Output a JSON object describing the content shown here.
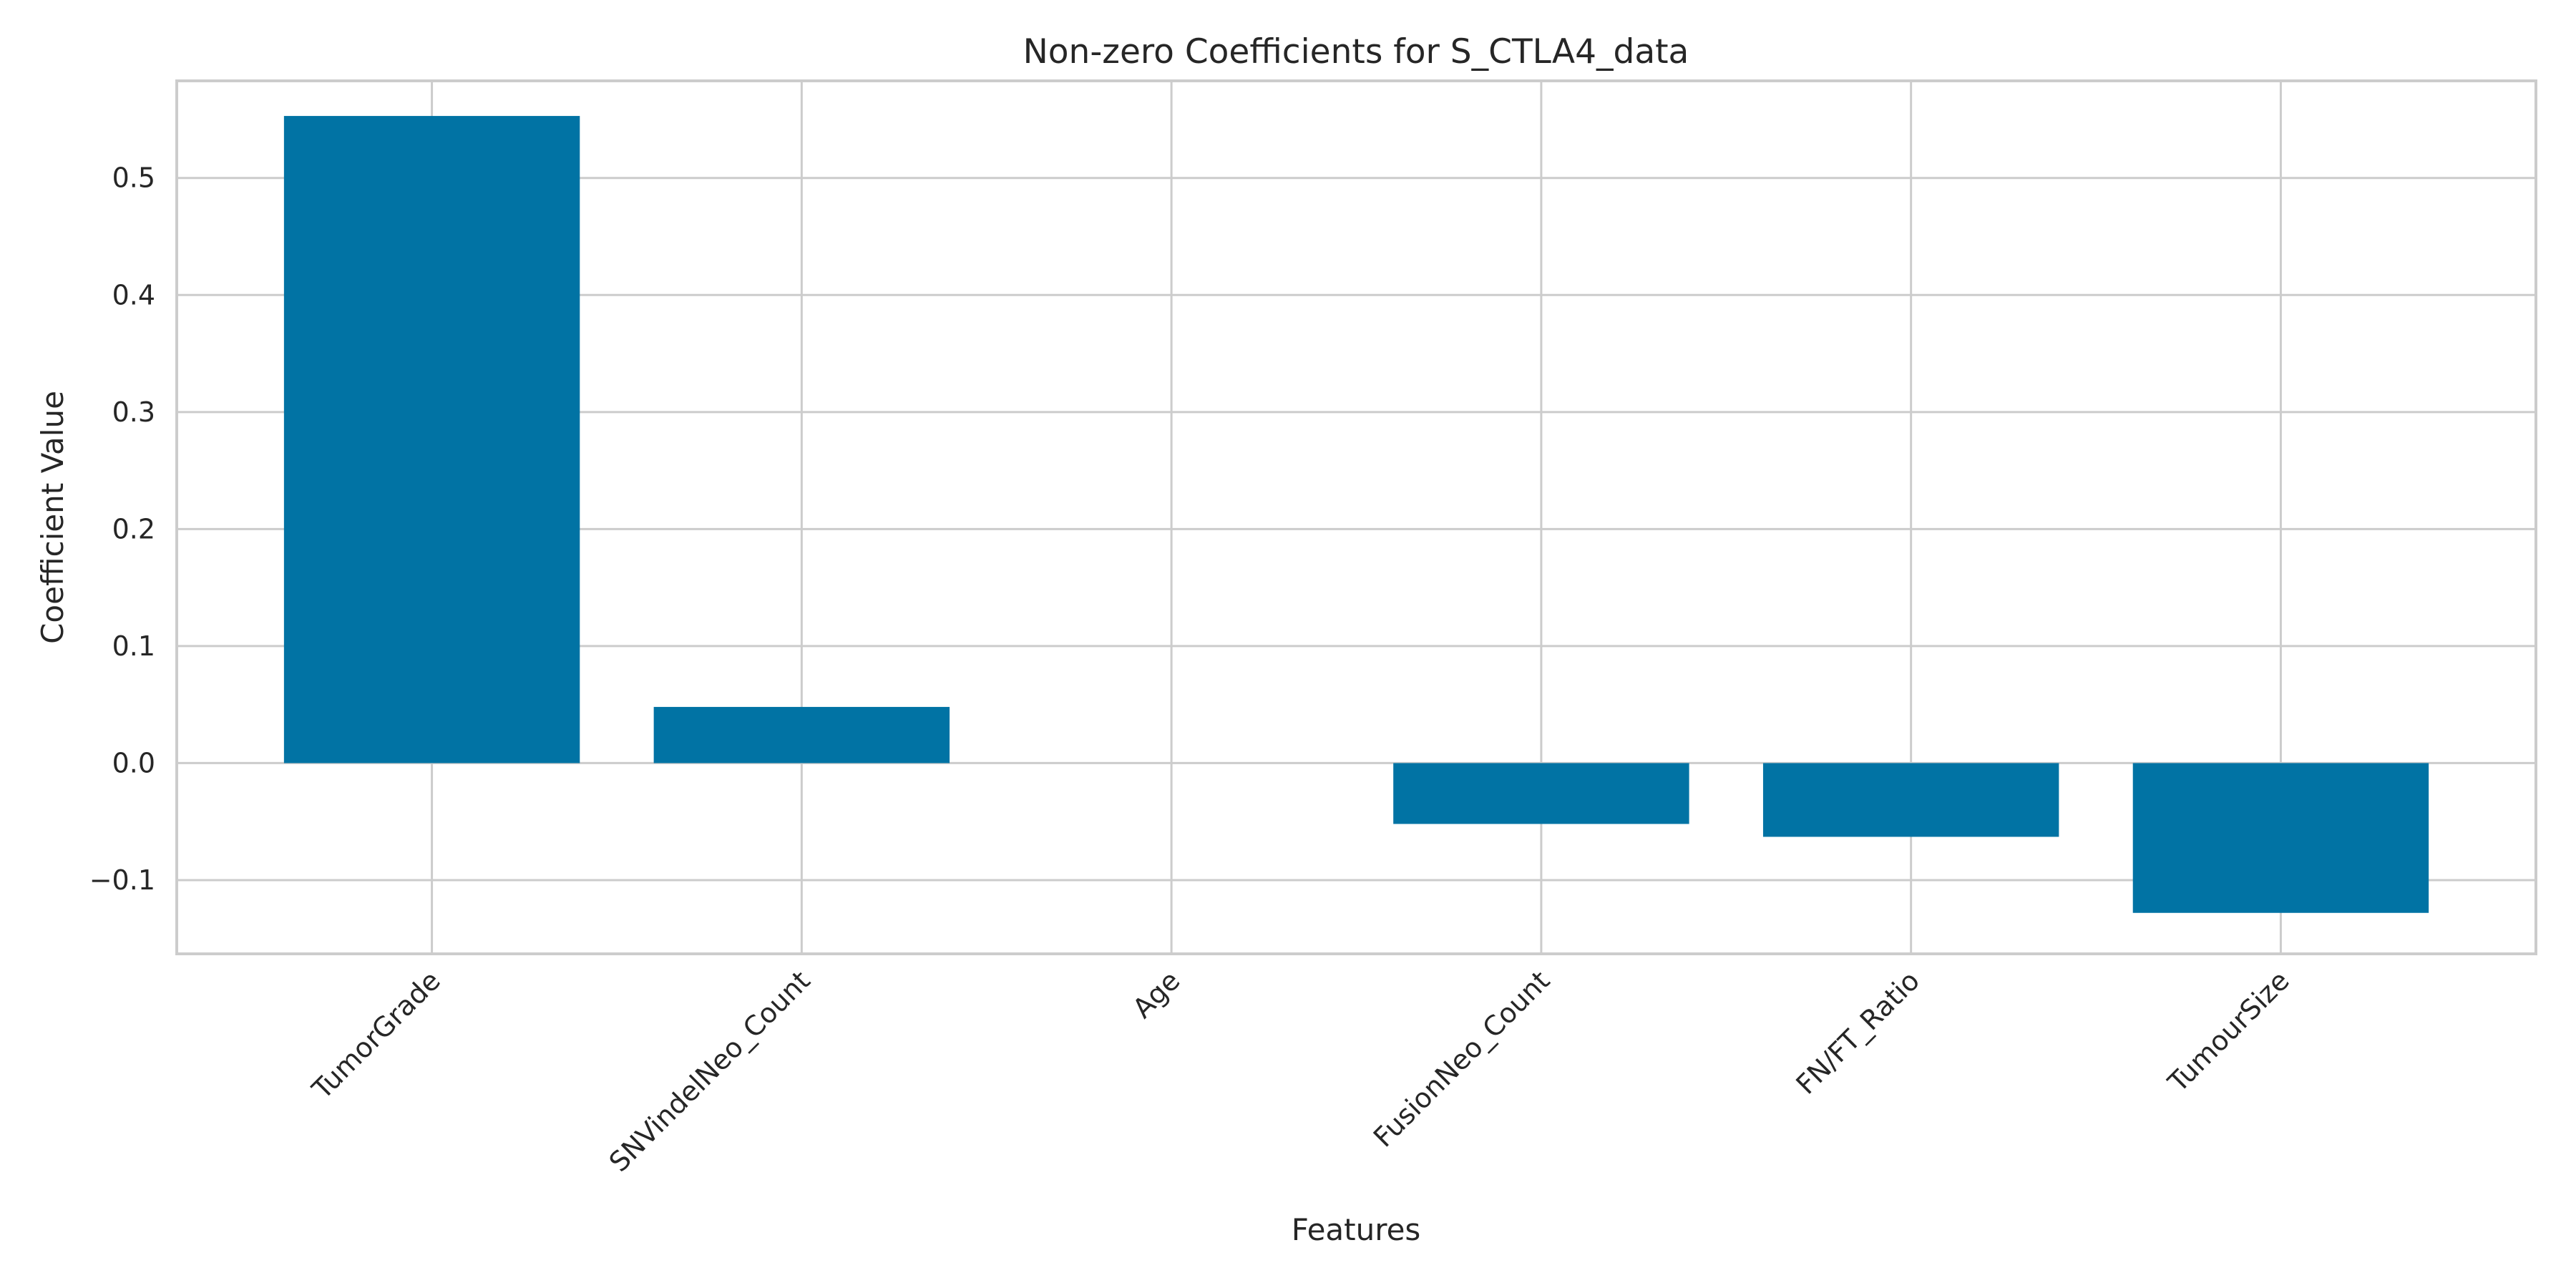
{
  "chart_data": {
    "type": "bar",
    "title": "Non-zero Coefficients for S_CTLA4_data",
    "xlabel": "Features",
    "ylabel": "Coefficient Value",
    "categories": [
      "TumorGrade",
      "SNVindelNeo_Count",
      "Age",
      "FusionNeo_Count",
      "FN/FT_Ratio",
      "TumourSize"
    ],
    "values": [
      0.553,
      0.048,
      0.0,
      -0.052,
      -0.063,
      -0.128
    ],
    "ylim": [
      -0.163,
      0.583
    ],
    "yticks": [
      -0.1,
      0.0,
      0.1,
      0.2,
      0.3,
      0.4,
      0.5
    ],
    "ytick_labels": [
      "−0.1",
      "0.0",
      "0.1",
      "0.2",
      "0.3",
      "0.4",
      "0.5"
    ],
    "grid": true,
    "legend": "none",
    "colors": {
      "bar": "#0173a4",
      "grid": "#cccccc",
      "spine": "#cccccc",
      "text": "#262626"
    }
  }
}
